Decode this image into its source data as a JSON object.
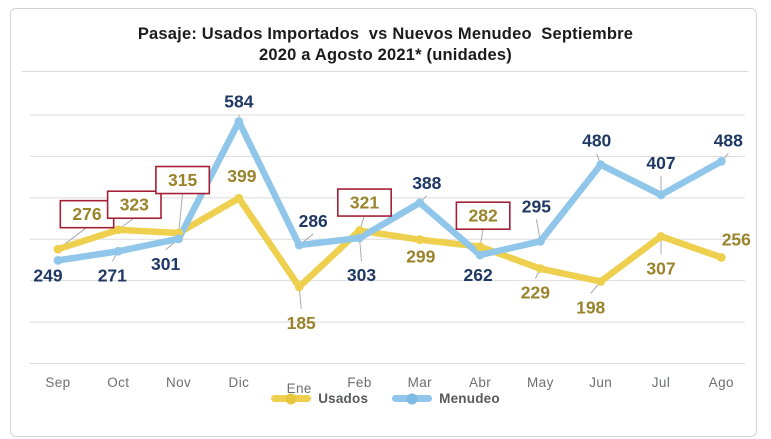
{
  "title": {
    "lines": [
      "Pasaje: Usados Importados  vs Nuevos Menudeo  Septiembre",
      "2020 a Agosto 2021* (unidades)"
    ],
    "color": "#1b1b1b"
  },
  "legend": {
    "text_color": "#58595b",
    "items": [
      {
        "label": "Usados",
        "color": "#eed04e",
        "dot_color": "#e6c63c"
      },
      {
        "label": "Menudeo",
        "color": "#8fc6e9",
        "dot_color": "#7cbae2"
      }
    ]
  },
  "chart_data": {
    "type": "line",
    "title": "Pasaje: Usados Importados vs Nuevos Menudeo Septiembre 2020 a Agosto 2021* (unidades)",
    "categories": [
      "Sep",
      "Oct",
      "Nov",
      "Dic",
      "Ene",
      "Feb",
      "Mar",
      "Abr",
      "May",
      "Jun",
      "Jul",
      "Ago"
    ],
    "series": [
      {
        "name": "Usados",
        "color": "#eed04e",
        "label_color": "#9a842b",
        "values": [
          276,
          323,
          315,
          399,
          185,
          321,
          299,
          282,
          229,
          198,
          307,
          256
        ],
        "labels": [
          {
            "dx": 29,
            "dy": -35,
            "boxed": true,
            "leader": true
          },
          {
            "dx": 16,
            "dy": -25,
            "boxed": true,
            "leader": true
          },
          {
            "dx": 4,
            "dy": -53,
            "boxed": true,
            "leader": true
          },
          {
            "dx": 3,
            "dy": -22,
            "boxed": false,
            "leader": false
          },
          {
            "dx": 2,
            "dy": 36,
            "boxed": false,
            "leader": true
          },
          {
            "dx": 5,
            "dy": -28,
            "boxed": true,
            "leader": true
          },
          {
            "dx": 1,
            "dy": 17,
            "boxed": false,
            "leader": false
          },
          {
            "dx": 3,
            "dy": -31,
            "boxed": true,
            "leader": true
          },
          {
            "dx": -5,
            "dy": 24,
            "boxed": false,
            "leader": true
          },
          {
            "dx": -10,
            "dy": 26,
            "boxed": false,
            "leader": true
          },
          {
            "dx": 0,
            "dy": 32,
            "boxed": false,
            "leader": true
          },
          {
            "dx": 15,
            "dy": -18,
            "boxed": false,
            "leader": false
          }
        ]
      },
      {
        "name": "Menudeo",
        "color": "#8fc6e9",
        "label_color": "#1f3864",
        "values": [
          249,
          271,
          301,
          584,
          286,
          303,
          388,
          262,
          295,
          480,
          407,
          488
        ],
        "labels": [
          {
            "dx": -10,
            "dy": 15,
            "boxed": false,
            "leader": false
          },
          {
            "dx": -6,
            "dy": 24,
            "boxed": false,
            "leader": true
          },
          {
            "dx": -13,
            "dy": 25,
            "boxed": false,
            "leader": true
          },
          {
            "dx": 0,
            "dy": -20,
            "boxed": false,
            "leader": true
          },
          {
            "dx": 14,
            "dy": -24,
            "boxed": false,
            "leader": true
          },
          {
            "dx": 2,
            "dy": 37,
            "boxed": false,
            "leader": true
          },
          {
            "dx": 7,
            "dy": -20,
            "boxed": false,
            "leader": true
          },
          {
            "dx": -2,
            "dy": 20,
            "boxed": false,
            "leader": false
          },
          {
            "dx": -4,
            "dy": -35,
            "boxed": false,
            "leader": true
          },
          {
            "dx": -4,
            "dy": -24,
            "boxed": false,
            "leader": true
          },
          {
            "dx": 0,
            "dy": -32,
            "boxed": false,
            "leader": true
          },
          {
            "dx": 7,
            "dy": -21,
            "boxed": false,
            "leader": true
          }
        ]
      }
    ],
    "ylim": [
      0,
      600
    ],
    "grid_step": 100,
    "grid": true,
    "legend_position": "bottom",
    "colors": {
      "grid": "#dbdbdb",
      "leader": "#ababab",
      "highlight_box": "#a32035",
      "month_labels": "#6d6e71"
    },
    "annotations": "Usados values 276, 323, 315, 321 and 282 are emphasized with dark-red outlined boxes"
  }
}
